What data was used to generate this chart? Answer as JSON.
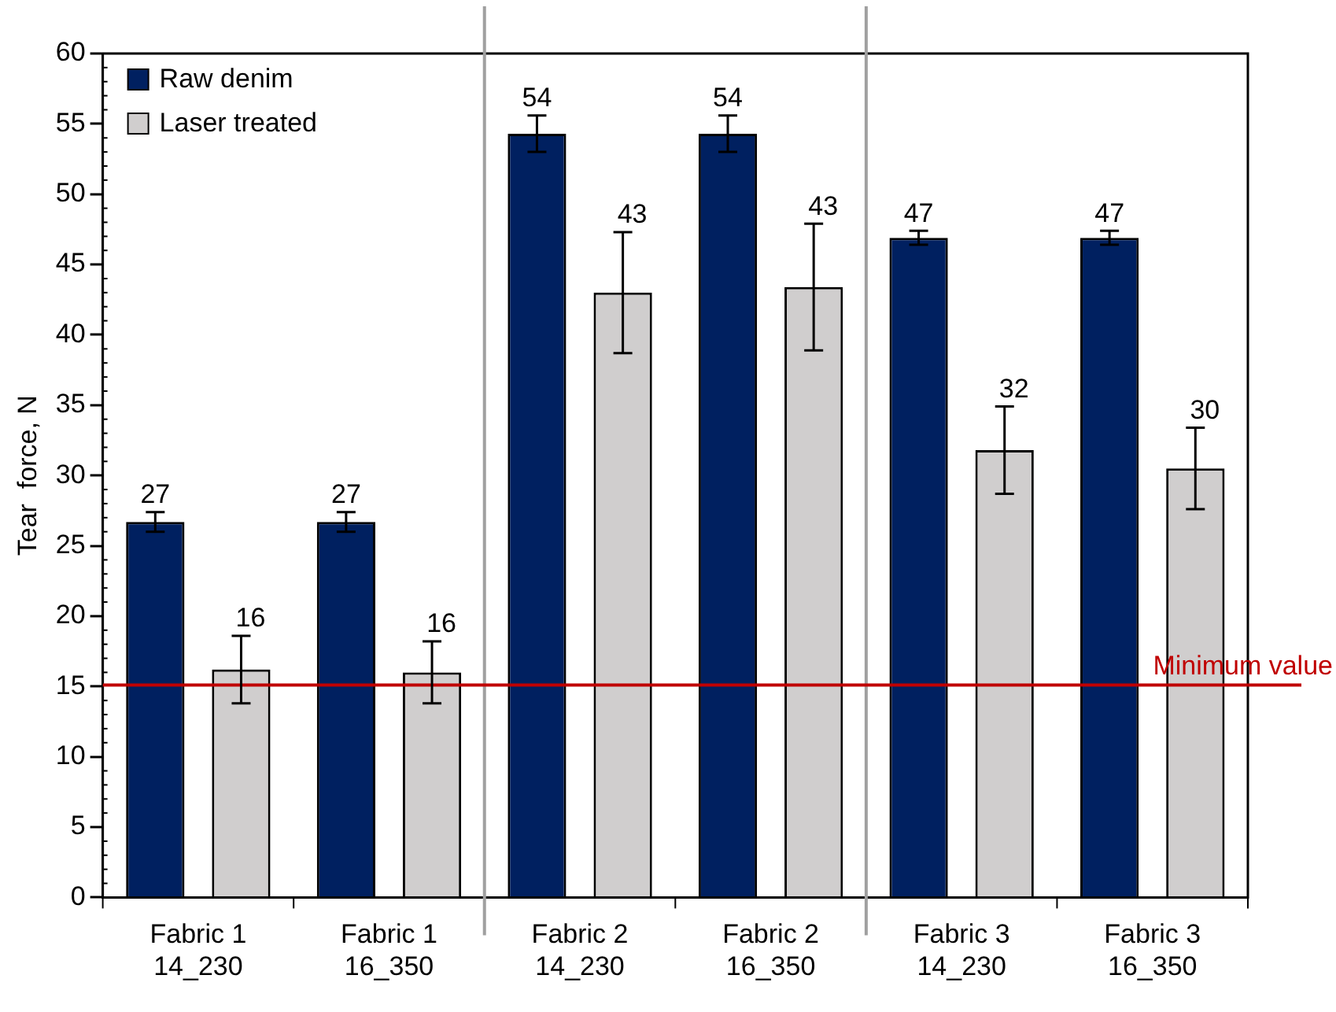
{
  "chart_data": {
    "type": "bar",
    "ylabel": "Tear  force, N",
    "categories": [
      "Fabric 1\n14_230",
      "Fabric 1\n16_350",
      "Fabric 2\n14_230",
      "Fabric 2\n16_350",
      "Fabric 3\n14_230",
      "Fabric 3\n16_350"
    ],
    "series": [
      {
        "name": "Raw denim",
        "color": "#002060",
        "values": [
          26.7,
          26.7,
          54.3,
          54.3,
          46.9,
          46.9
        ],
        "errors": [
          0.7,
          0.7,
          1.3,
          1.3,
          0.5,
          0.5
        ],
        "value_labels": [
          "27",
          "27",
          "54",
          "54",
          "47",
          "47"
        ]
      },
      {
        "name": "Laser treated",
        "color": "#d0cece",
        "values": [
          16.2,
          16.0,
          43.0,
          43.4,
          31.8,
          30.5
        ],
        "errors": [
          2.4,
          2.2,
          4.3,
          4.5,
          3.1,
          2.9
        ],
        "value_labels": [
          "16",
          "16",
          "43",
          "43",
          "32",
          "30"
        ]
      }
    ],
    "ylim": [
      0,
      60
    ],
    "yticks": [
      0,
      5,
      10,
      15,
      20,
      25,
      30,
      35,
      40,
      45,
      50,
      55,
      60
    ],
    "ref_lines": [
      {
        "axis": "y",
        "value": 15.1,
        "label": "Minimum value",
        "color": "#c00000"
      }
    ],
    "legend": "top left",
    "grid": false
  }
}
